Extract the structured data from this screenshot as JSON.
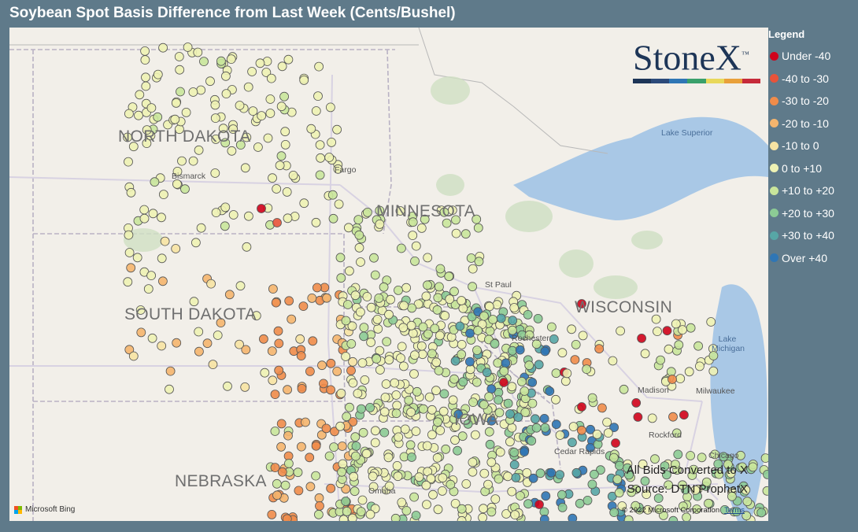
{
  "title": "Soybean Spot Basis Difference from Last Week (Cents/Bushel)",
  "legend": {
    "title": "Legend",
    "items": [
      {
        "label": "Under -40",
        "color": "#d0021b"
      },
      {
        "label": "-40 to -30",
        "color": "#e8533a"
      },
      {
        "label": "-30 to -20",
        "color": "#f08c4a"
      },
      {
        "label": "-20 to -10",
        "color": "#f5b56e"
      },
      {
        "label": "-10 to 0",
        "color": "#f7e3a3"
      },
      {
        "label": "0 to +10",
        "color": "#eef2b4"
      },
      {
        "label": "+10 to +20",
        "color": "#c9e59b"
      },
      {
        "label": "+20 to +30",
        "color": "#8ccb95"
      },
      {
        "label": "+30 to +40",
        "color": "#57a6a6"
      },
      {
        "label": "Over +40",
        "color": "#2f76b5"
      }
    ]
  },
  "logo": {
    "text": "StoneX",
    "trademark": "™",
    "bar_colors": [
      "#1d3557",
      "#2c4a7a",
      "#2f76b5",
      "#3aa06b",
      "#e9d85a",
      "#e9a03a",
      "#c62a3a"
    ]
  },
  "map": {
    "states": [
      "NORTH DAKOTA",
      "MINNESOTA",
      "SOUTH DAKOTA",
      "WISCONSIN",
      "IOWA",
      "NEBRASKA"
    ],
    "cities": [
      "Bismarck",
      "Fargo",
      "St Paul",
      "Rochester",
      "Madison",
      "Milwaukee",
      "Rockford",
      "Chicago",
      "Cedar Rapids",
      "Omaha"
    ],
    "lakes": [
      "Lake Superior",
      "Lake Michigan"
    ],
    "provider": "Microsoft Bing",
    "copyright": "© 2022 Microsoft Corporation",
    "terms": "Terms"
  },
  "notes": {
    "line1": "All Bids Converted to X",
    "line2": "Source: DTN ProphetX"
  }
}
